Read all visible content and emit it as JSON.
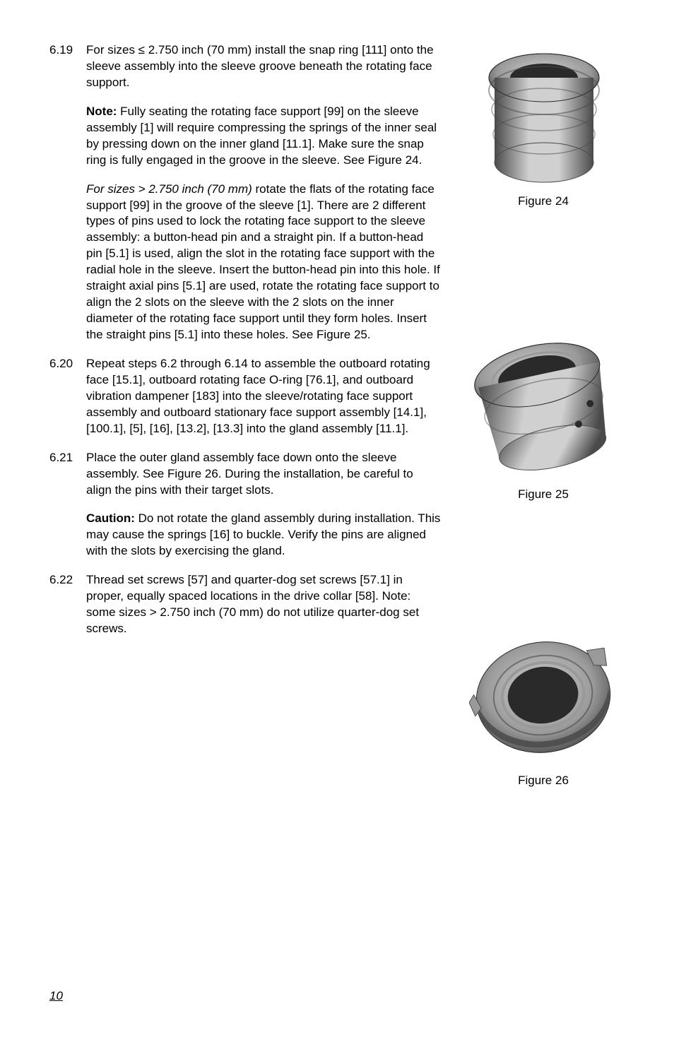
{
  "page_number": "10",
  "entries": [
    {
      "num": "6.19",
      "paragraphs": [
        {
          "segments": [
            {
              "text": "For sizes ≤ 2.750 inch (70 mm) install the snap ring [111] onto the sleeve assembly into the sleeve groove beneath the rotating face support."
            }
          ]
        },
        {
          "segments": [
            {
              "style": "bold",
              "text": "Note: "
            },
            {
              "text": "Fully seating the rotating face support [99] on the sleeve assembly [1] will require compressing the springs of the inner seal by pressing down on  the inner gland [11.1]. Make sure the snap ring is fully engaged in the groove in the sleeve. See Figure 24."
            }
          ]
        },
        {
          "segments": [
            {
              "style": "italic",
              "text": "For sizes > 2.750 inch (70 mm) "
            },
            {
              "text": "rotate the flats of the rotating face support [99] in the groove of the sleeve [1]. There are 2 different types of pins used to lock the rotating face support to the sleeve assembly: a button-head pin and a straight pin. If a button-head pin [5.1] is used, align the slot in the rotating face support with the radial hole in the sleeve. Insert the button-head pin into this hole. If straight axial pins [5.1] are used, rotate the rotating face support to align the 2 slots on the sleeve with the 2 slots on the inner diameter of the rotating face support until they form holes. Insert the straight pins [5.1] into these holes. See Figure 25."
            }
          ]
        }
      ]
    },
    {
      "num": "6.20",
      "paragraphs": [
        {
          "segments": [
            {
              "text": "Repeat steps 6.2 through 6.14 to assemble the outboard rotating face [15.1], outboard rotating face O-ring [76.1], and outboard vibration dampener [183] into the sleeve/rotating face support assembly and outboard stationary face support assembly [14.1], [100.1], [5], [16], [13.2], [13.3] into the gland assembly [11.1]."
            }
          ]
        }
      ]
    },
    {
      "num": "6.21",
      "paragraphs": [
        {
          "segments": [
            {
              "text": "Place the outer gland assembly face down onto the sleeve assembly. See Figure 26. During the installation, be careful to align the pins with their target slots."
            }
          ]
        },
        {
          "segments": [
            {
              "style": "bold",
              "text": "Caution: "
            },
            {
              "text": "Do not rotate the gland assembly during installation. This may cause the springs [16] to buckle. Verify the pins are aligned with the slots by exercising the gland."
            }
          ]
        }
      ]
    },
    {
      "num": "6.22",
      "paragraphs": [
        {
          "segments": [
            {
              "text": "Thread set screws [57] and quarter-dog set screws [57.1] in proper, equally spaced locations in the drive collar [58]. Note: some sizes > 2.750 inch (70 mm) do not utilize quarter-dog set screws."
            }
          ]
        }
      ]
    }
  ],
  "figures": [
    {
      "caption": "Figure 24",
      "kind": "seal-top"
    },
    {
      "caption": "Figure 25",
      "kind": "seal-angle"
    },
    {
      "caption": "Figure 26",
      "kind": "seal-flat"
    }
  ],
  "colors": {
    "text": "#000000",
    "background": "#ffffff",
    "metal_light": "#d0d0d0",
    "metal_mid": "#9a9a9a",
    "metal_dark": "#4a4a4a",
    "metal_darkest": "#2a2a2a"
  }
}
